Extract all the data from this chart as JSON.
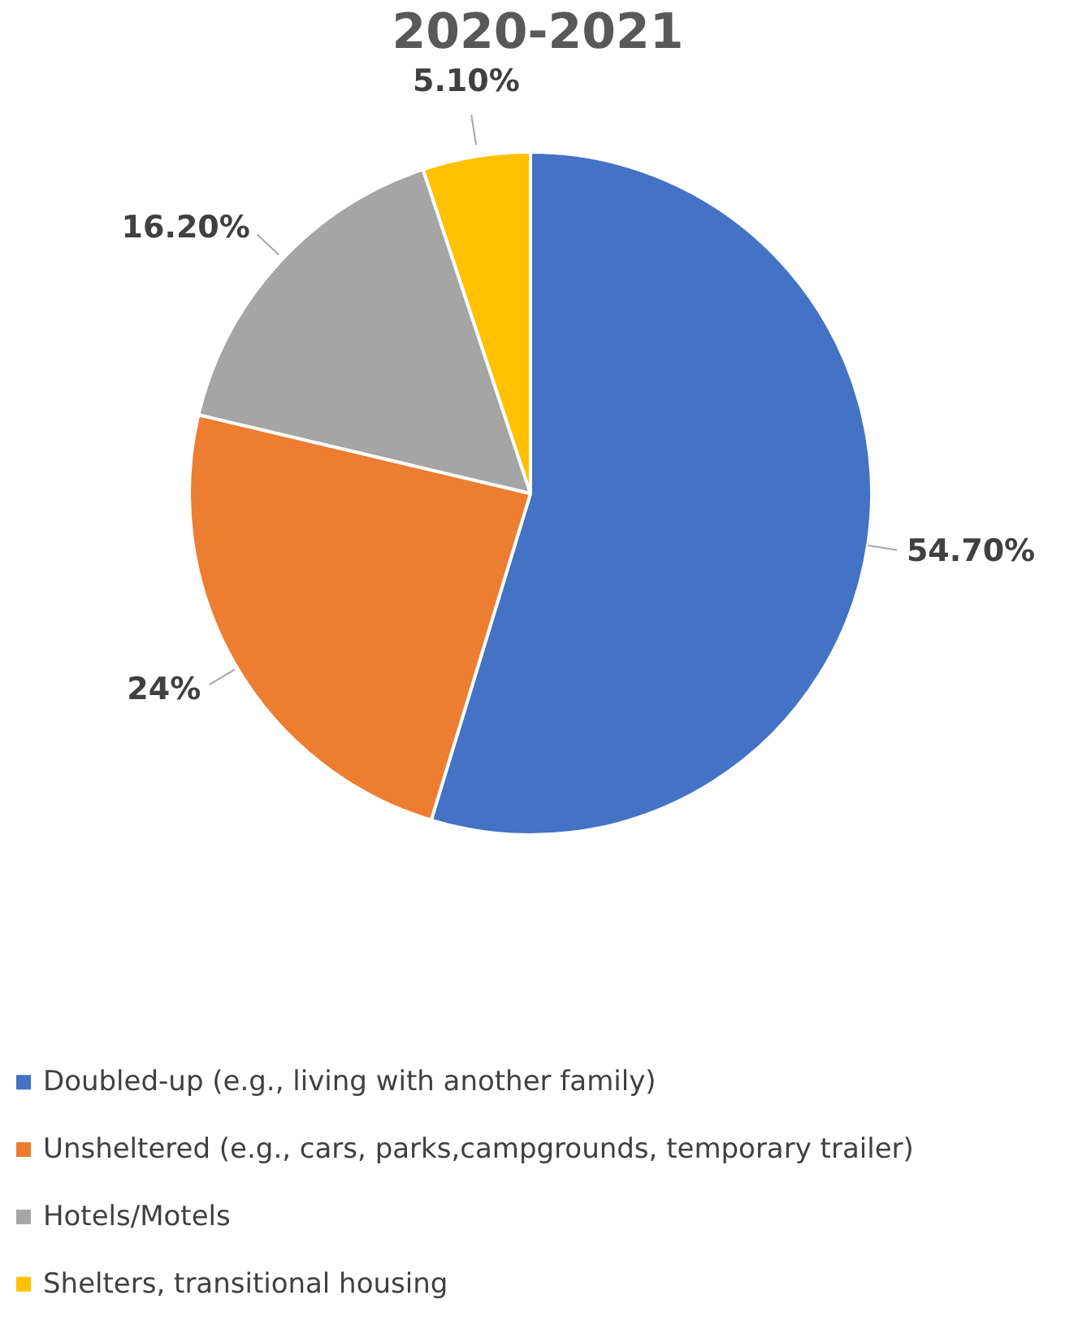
{
  "chart_data": {
    "type": "pie",
    "title": "2020-2021",
    "categories": [
      "Doubled-up (e.g., living with another family)",
      "Unsheltered (e.g., cars, parks,campgrounds, temporary trailer)",
      "Hotels/Motels",
      "Shelters, transitional housing"
    ],
    "values": [
      54.7,
      24,
      16.2,
      5.1
    ],
    "colors": [
      "#4472c4",
      "#ed7d31",
      "#a5a5a5",
      "#ffc000"
    ],
    "value_labels": [
      "54.70%",
      "24%",
      "16.20%",
      "5.10%"
    ],
    "legend": "bottom"
  }
}
